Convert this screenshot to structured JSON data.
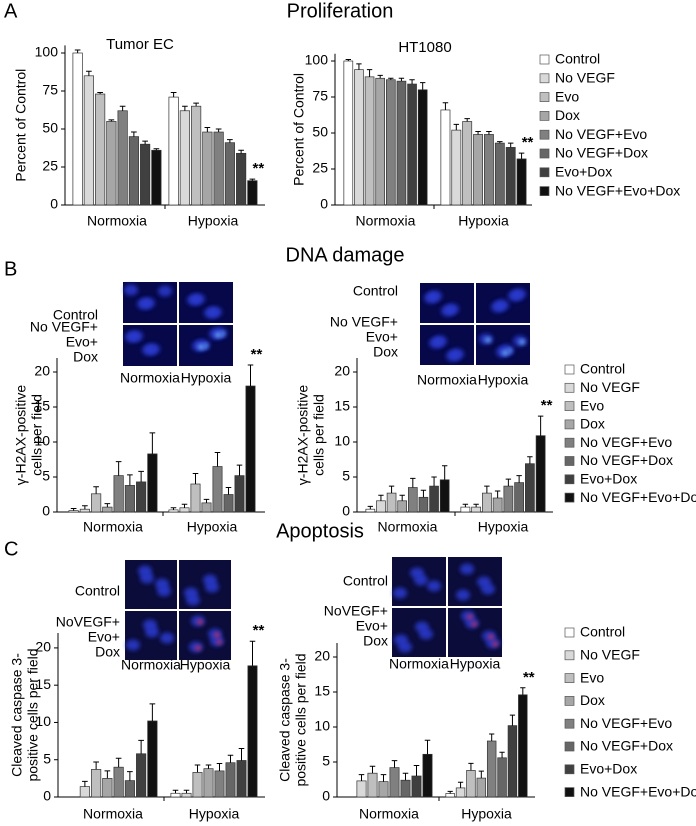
{
  "panels": [
    {
      "letter": "A",
      "title": "Proliferation"
    },
    {
      "letter": "B",
      "title": "DNA damage"
    },
    {
      "letter": "C",
      "title": "Apoptosis"
    }
  ],
  "micrographs": [
    {
      "row_labels": [
        [
          "Control"
        ],
        [
          "No VEGF+",
          "Evo+",
          "Dox"
        ]
      ],
      "col_labels": [
        "Normoxia",
        "Hypoxia"
      ]
    },
    {
      "row_labels": [
        [
          "Control"
        ],
        [
          "No VEGF+",
          "Evo+",
          "Dox"
        ]
      ],
      "col_labels": [
        "Normoxia",
        "Hypoxia"
      ]
    },
    {
      "row_labels": [
        [
          "Control"
        ],
        [
          "NoVEGF+",
          "Evo+",
          "Dox"
        ]
      ],
      "col_labels": [
        "Normoxia",
        "Hypoxia"
      ]
    },
    {
      "row_labels": [
        [
          "Control"
        ],
        [
          "NoVEGF+",
          "Evo+",
          "Dox"
        ]
      ],
      "col_labels": [
        "Normoxia",
        "Hypoxia"
      ]
    }
  ],
  "chart_data": [
    {
      "type": "bar",
      "title": "Tumor EC",
      "ylabel": [
        "Percent of Control"
      ],
      "categories": [
        "Normoxia",
        "Hypoxia"
      ],
      "ylim": [
        0,
        105
      ],
      "yticks": [
        0,
        25,
        50,
        75,
        100
      ],
      "legend": false,
      "series": [
        {
          "color": "#ffffff",
          "values": [
            100,
            71
          ],
          "errors": [
            2,
            3
          ]
        },
        {
          "color": "#d9d9d9",
          "values": [
            85,
            62
          ],
          "errors": [
            3,
            3
          ]
        },
        {
          "color": "#bfbfbf",
          "values": [
            73,
            65
          ],
          "errors": [
            1,
            2
          ]
        },
        {
          "color": "#a6a6a6",
          "values": [
            55,
            48
          ],
          "errors": [
            1,
            3
          ]
        },
        {
          "color": "#808080",
          "values": [
            62,
            48
          ],
          "errors": [
            3,
            2
          ]
        },
        {
          "color": "#666666",
          "values": [
            45,
            41
          ],
          "errors": [
            3,
            2
          ]
        },
        {
          "color": "#404040",
          "values": [
            40,
            34
          ],
          "errors": [
            2,
            2
          ]
        },
        {
          "color": "#111111",
          "values": [
            36,
            16
          ],
          "errors": [
            1,
            1
          ],
          "markers": [
            null,
            "**"
          ]
        }
      ]
    },
    {
      "type": "bar",
      "title": "HT1080",
      "ylabel": [
        "Percent of Control"
      ],
      "categories": [
        "Normoxia",
        "Hypoxia"
      ],
      "ylim": [
        0,
        105
      ],
      "yticks": [
        0,
        25,
        50,
        75,
        100
      ],
      "legend": true,
      "series": [
        {
          "name": "Control",
          "color": "#ffffff",
          "values": [
            100,
            66
          ],
          "errors": [
            1,
            5
          ]
        },
        {
          "name": "No VEGF",
          "color": "#d9d9d9",
          "values": [
            94,
            52
          ],
          "errors": [
            4,
            4
          ]
        },
        {
          "name": "Evo",
          "color": "#bfbfbf",
          "values": [
            89,
            58
          ],
          "errors": [
            5,
            2
          ]
        },
        {
          "name": "Dox",
          "color": "#a6a6a6",
          "values": [
            88,
            49
          ],
          "errors": [
            2,
            2
          ]
        },
        {
          "name": "No VEGF+Evo",
          "color": "#808080",
          "values": [
            87,
            49
          ],
          "errors": [
            1,
            2
          ]
        },
        {
          "name": "No VEGF+Dox",
          "color": "#666666",
          "values": [
            86,
            43
          ],
          "errors": [
            2,
            1
          ]
        },
        {
          "name": "Evo+Dox",
          "color": "#404040",
          "values": [
            84,
            40
          ],
          "errors": [
            3,
            3
          ]
        },
        {
          "name": "No VEGF+Evo+Dox",
          "color": "#111111",
          "values": [
            80,
            32
          ],
          "errors": [
            5,
            4
          ],
          "markers": [
            null,
            "**"
          ]
        }
      ]
    },
    {
      "type": "bar",
      "ylabel": [
        "γ-H2AX-positive",
        "cells per field"
      ],
      "categories": [
        "Normoxia",
        "Hypoxia"
      ],
      "ylim": [
        0,
        22
      ],
      "yticks": [
        0,
        5,
        10,
        15,
        20
      ],
      "legend": false,
      "series": [
        {
          "color": "#ffffff",
          "values": [
            0.2,
            0.3
          ],
          "errors": [
            0.3,
            0.3
          ]
        },
        {
          "color": "#d9d9d9",
          "values": [
            0.4,
            0.6
          ],
          "errors": [
            0.5,
            0.5
          ]
        },
        {
          "color": "#bfbfbf",
          "values": [
            2.6,
            4.0
          ],
          "errors": [
            1,
            1.5
          ]
        },
        {
          "color": "#a6a6a6",
          "values": [
            0.7,
            1.3
          ],
          "errors": [
            0.5,
            0.5
          ]
        },
        {
          "color": "#808080",
          "values": [
            5.2,
            6.5
          ],
          "errors": [
            2,
            2
          ]
        },
        {
          "color": "#666666",
          "values": [
            3.8,
            2.5
          ],
          "errors": [
            1.5,
            1
          ]
        },
        {
          "color": "#404040",
          "values": [
            4.3,
            5.2
          ],
          "errors": [
            1.5,
            1.5
          ]
        },
        {
          "color": "#111111",
          "values": [
            8.3,
            18
          ],
          "errors": [
            3,
            3
          ],
          "markers": [
            null,
            "**"
          ]
        }
      ]
    },
    {
      "type": "bar",
      "ylabel": [
        "γ-H2AX-positive",
        "cells per field"
      ],
      "categories": [
        "Normoxia",
        "Hypoxia"
      ],
      "ylim": [
        0,
        22
      ],
      "yticks": [
        0,
        5,
        10,
        15,
        20
      ],
      "legend": true,
      "series": [
        {
          "name": "Control",
          "color": "#ffffff",
          "values": [
            0.4,
            0.7
          ],
          "errors": [
            0.4,
            0.4
          ]
        },
        {
          "name": "No VEGF",
          "color": "#d9d9d9",
          "values": [
            1.6,
            0.7
          ],
          "errors": [
            0.8,
            0.4
          ]
        },
        {
          "name": "Evo",
          "color": "#bfbfbf",
          "values": [
            2.7,
            2.7
          ],
          "errors": [
            1,
            1
          ]
        },
        {
          "name": "Dox",
          "color": "#a6a6a6",
          "values": [
            1.6,
            2.0
          ],
          "errors": [
            0.8,
            1
          ]
        },
        {
          "name": "No VEGF+Evo",
          "color": "#808080",
          "values": [
            3.5,
            3.7
          ],
          "errors": [
            1.3,
            1
          ]
        },
        {
          "name": "No VEGF+Dox",
          "color": "#666666",
          "values": [
            2.1,
            4.2
          ],
          "errors": [
            1,
            1
          ]
        },
        {
          "name": "Evo+Dox",
          "color": "#404040",
          "values": [
            3.7,
            6.9
          ],
          "errors": [
            1.3,
            1
          ]
        },
        {
          "name": "No VEGF+Evo+Dox",
          "color": "#111111",
          "values": [
            4.6,
            10.9
          ],
          "errors": [
            2,
            2.8
          ],
          "markers": [
            null,
            "**"
          ]
        }
      ]
    },
    {
      "type": "bar",
      "ylabel": [
        "Cleaved caspase 3-",
        "positive cells per field"
      ],
      "categories": [
        "Normoxia",
        "Hypoxia"
      ],
      "ylim": [
        0,
        22
      ],
      "yticks": [
        0,
        5,
        10,
        15,
        20
      ],
      "legend": false,
      "series": [
        {
          "color": "#ffffff",
          "values": [
            0,
            0.5
          ],
          "errors": [
            0,
            0.4
          ]
        },
        {
          "color": "#d9d9d9",
          "values": [
            1.4,
            0.5
          ],
          "errors": [
            0.7,
            0.4
          ]
        },
        {
          "color": "#bfbfbf",
          "values": [
            3.7,
            3.3
          ],
          "errors": [
            1,
            1
          ]
        },
        {
          "color": "#a6a6a6",
          "values": [
            2.5,
            3.8
          ],
          "errors": [
            1,
            0.5
          ]
        },
        {
          "color": "#808080",
          "values": [
            4.0,
            3.5
          ],
          "errors": [
            1.2,
            1
          ]
        },
        {
          "color": "#666666",
          "values": [
            2.2,
            4.6
          ],
          "errors": [
            1.2,
            1
          ]
        },
        {
          "color": "#404040",
          "values": [
            5.8,
            4.9
          ],
          "errors": [
            1.8,
            1.6
          ]
        },
        {
          "color": "#111111",
          "values": [
            10.2,
            17.6
          ],
          "errors": [
            2.3,
            3.3
          ],
          "markers": [
            null,
            "**"
          ]
        }
      ]
    },
    {
      "type": "bar",
      "ylabel": [
        "Cleaved caspase 3-",
        "positive cells per field"
      ],
      "categories": [
        "Normoxia",
        "Hypoxia"
      ],
      "ylim": [
        0,
        22
      ],
      "yticks": [
        0,
        5,
        10,
        15,
        20
      ],
      "legend": true,
      "series": [
        {
          "name": "Control",
          "color": "#ffffff",
          "values": [
            0,
            0.5
          ],
          "errors": [
            0,
            0.3
          ]
        },
        {
          "name": "No VEGF",
          "color": "#d9d9d9",
          "values": [
            2.3,
            1.3
          ],
          "errors": [
            0.9,
            0.8
          ]
        },
        {
          "name": "Evo",
          "color": "#bfbfbf",
          "values": [
            3.4,
            3.8
          ],
          "errors": [
            1,
            1
          ]
        },
        {
          "name": "Dox",
          "color": "#a6a6a6",
          "values": [
            2.2,
            2.7
          ],
          "errors": [
            1,
            1
          ]
        },
        {
          "name": "No VEGF+Evo",
          "color": "#808080",
          "values": [
            4.2,
            8.0
          ],
          "errors": [
            1,
            1
          ]
        },
        {
          "name": "No VEGF+Dox",
          "color": "#666666",
          "values": [
            2.4,
            5.6
          ],
          "errors": [
            1,
            0.8
          ]
        },
        {
          "name": "Evo+Dox",
          "color": "#404040",
          "values": [
            3.0,
            10.2
          ],
          "errors": [
            1.5,
            1.5
          ]
        },
        {
          "name": "No VEGF+Evo+Dox",
          "color": "#111111",
          "values": [
            6.1,
            14.6
          ],
          "errors": [
            2,
            1
          ],
          "markers": [
            null,
            "**"
          ]
        }
      ]
    }
  ]
}
